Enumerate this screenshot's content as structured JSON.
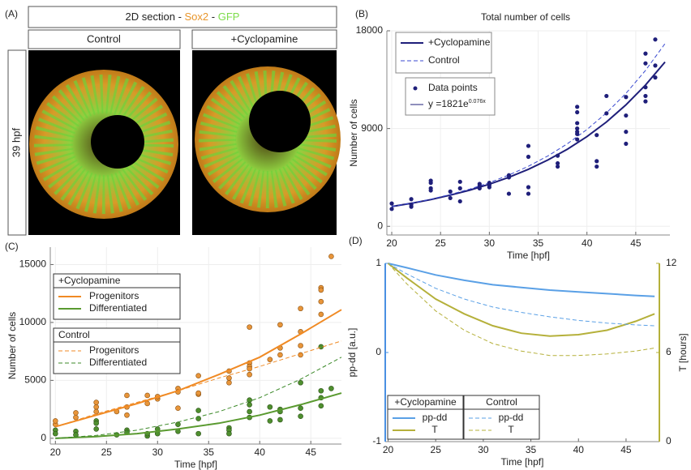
{
  "figure_a": {
    "panel_label": "(A)",
    "header_parts": [
      "2D section - ",
      "Sox2",
      " - ",
      "GFP"
    ],
    "header_colors": [
      "#222222",
      "#e8952a",
      "#222222",
      "#7ddc4a"
    ],
    "columns": [
      "Control",
      "+Cyclopamine"
    ],
    "row_label": "39 hpf"
  },
  "chart_data": [
    {
      "type": "line",
      "panel_label": "(B)",
      "title": "Total number of cells",
      "x_label": "Time [hpf]",
      "y_label": "Number of cells",
      "xlim": [
        19.5,
        48.5
      ],
      "xticks": [
        20,
        25,
        30,
        35,
        40,
        45
      ],
      "ylim": [
        -800,
        18000
      ],
      "yticks": [
        0,
        9000,
        18000
      ],
      "grid": true,
      "fit_label": "y =1821e",
      "fit_exponent": "0.076x",
      "series": [
        {
          "name": "+Cyclopamine",
          "color": "#1f1f7a",
          "style": "solid",
          "x": [
            20,
            22,
            24,
            26,
            28,
            30,
            32,
            34,
            36,
            38,
            40,
            42,
            44,
            46,
            48
          ],
          "values": [
            1820,
            2120,
            2460,
            2870,
            3330,
            3880,
            4510,
            5250,
            6110,
            7100,
            8260,
            9610,
            11180,
            13010,
            15130
          ]
        },
        {
          "name": "Control",
          "color": "#3a4ad0",
          "style": "dashed",
          "x": [
            20,
            22,
            24,
            26,
            28,
            30,
            32,
            34,
            36,
            38,
            40,
            42,
            44,
            46,
            48
          ],
          "values": [
            1820,
            2130,
            2500,
            2930,
            3430,
            4020,
            4720,
            5530,
            6480,
            7600,
            8910,
            10440,
            12240,
            14350,
            16820
          ]
        },
        {
          "name": "Data points",
          "color": "#1f1f7a",
          "style": "points",
          "x": [
            20,
            20,
            22,
            22,
            22,
            24,
            24,
            24,
            24,
            26,
            26,
            27,
            27,
            27,
            29,
            29,
            29,
            30,
            30,
            30,
            32,
            32,
            32,
            34,
            34,
            34,
            34,
            37,
            37,
            37,
            39,
            39,
            39,
            39,
            39,
            39,
            39,
            41,
            41,
            41,
            42,
            42,
            44,
            44,
            44,
            44,
            46,
            46,
            46,
            46,
            46,
            47,
            47,
            47
          ],
          "values": [
            2100,
            1600,
            2500,
            1800,
            2000,
            4200,
            4000,
            3500,
            3300,
            2600,
            3200,
            4100,
            3500,
            2300,
            3700,
            3900,
            3500,
            3800,
            3600,
            4000,
            3000,
            4700,
            4500,
            7400,
            6400,
            3000,
            3600,
            6500,
            5500,
            5800,
            11000,
            10500,
            9500,
            9000,
            8500,
            8000,
            8700,
            8400,
            6000,
            5500,
            12000,
            10400,
            11900,
            10200,
            8700,
            7600,
            15900,
            15000,
            12800,
            12000,
            11500,
            17200,
            14800,
            13700
          ]
        }
      ]
    },
    {
      "type": "line",
      "panel_label": "(C)",
      "x_label": "Time [hpf]",
      "y_label": "Number of cells",
      "xlim": [
        19.5,
        48
      ],
      "xticks": [
        20,
        25,
        30,
        35,
        40,
        45
      ],
      "ylim": [
        -500,
        16500
      ],
      "yticks": [
        0,
        5000,
        10000,
        15000
      ],
      "grid": true,
      "points": [
        {
          "color": "#e8953a",
          "edge": "#8a5010",
          "x": [
            20,
            20,
            22,
            22,
            24,
            24,
            24,
            26,
            27,
            27,
            27,
            29,
            29,
            30,
            30,
            32,
            32,
            32,
            34,
            34,
            34,
            37,
            37,
            37,
            39,
            39,
            39,
            39,
            39,
            41,
            42,
            42,
            42,
            44,
            44,
            44,
            44,
            46,
            46,
            46,
            46,
            47
          ],
          "values": [
            1200,
            1500,
            2200,
            1800,
            2700,
            2300,
            3100,
            2300,
            3700,
            2700,
            2000,
            3700,
            3000,
            3400,
            3600,
            4300,
            4000,
            2600,
            5400,
            3800,
            3900,
            5800,
            4800,
            5200,
            9600,
            6500,
            6200,
            6000,
            5500,
            6800,
            9800,
            7800,
            7200,
            11200,
            9200,
            8000,
            7200,
            13000,
            12800,
            11800,
            10700,
            15700
          ]
        },
        {
          "color": "#4f8f2f",
          "edge": "#2a5015",
          "x": [
            20,
            20,
            22,
            22,
            24,
            24,
            24,
            26,
            27,
            27,
            29,
            29,
            30,
            30,
            32,
            32,
            34,
            34,
            34,
            37,
            37,
            37,
            39,
            39,
            39,
            39,
            41,
            41,
            42,
            42,
            42,
            44,
            44,
            44,
            46,
            46,
            46,
            46,
            47
          ],
          "values": [
            700,
            400,
            600,
            300,
            1500,
            1300,
            800,
            300,
            700,
            500,
            200,
            400,
            800,
            400,
            600,
            1200,
            2400,
            1700,
            400,
            900,
            700,
            400,
            3300,
            2900,
            2300,
            1800,
            2700,
            1500,
            2500,
            2300,
            1600,
            4800,
            2600,
            1900,
            7900,
            4100,
            3500,
            2800,
            4300
          ]
        }
      ],
      "groups": [
        {
          "title": "+Cyclopamine",
          "series": [
            {
              "name": "Progenitors",
              "color": "#f08a24",
              "style": "solid",
              "x": [
                20,
                24,
                28,
                32,
                36,
                40,
                44,
                48
              ],
              "values": [
                1000,
                2000,
                3000,
                4100,
                5500,
                7000,
                9000,
                11100
              ]
            },
            {
              "name": "Differentiated",
              "color": "#5a9a30",
              "style": "solid",
              "x": [
                20,
                24,
                28,
                32,
                36,
                40,
                44,
                48
              ],
              "values": [
                0,
                150,
                400,
                800,
                1300,
                2000,
                2900,
                3900
              ]
            }
          ]
        },
        {
          "title": "Control",
          "series": [
            {
              "name": "Progenitors",
              "color": "#f08a24",
              "style": "dashed",
              "x": [
                20,
                24,
                28,
                32,
                36,
                40,
                44,
                48
              ],
              "values": [
                1000,
                2100,
                3100,
                4100,
                5200,
                6200,
                7300,
                8400
              ]
            },
            {
              "name": "Differentiated",
              "color": "#3d8a2a",
              "style": "dashed",
              "x": [
                20,
                24,
                28,
                32,
                36,
                40,
                44,
                48
              ],
              "values": [
                0,
                250,
                700,
                1400,
                2300,
                3500,
                5100,
                7000
              ]
            }
          ]
        }
      ]
    },
    {
      "type": "line",
      "panel_label": "(D)",
      "x_label": "Time [hpf]",
      "y_label": "pp-dd [a.u.]",
      "y2_label": "T [hours]",
      "xlim": [
        19.7,
        48.5
      ],
      "xticks": [
        20,
        25,
        30,
        35,
        40,
        45
      ],
      "ylim": [
        -1,
        1
      ],
      "yticks": [
        -1,
        0,
        1
      ],
      "y2lim": [
        0,
        12
      ],
      "y2ticks": [
        0,
        6,
        12
      ],
      "grid": false,
      "y_color": "#4a90e2",
      "y2_color": "#b5b03a",
      "groups": [
        {
          "title": "+Cyclopamine",
          "series": [
            {
              "name": "pp-dd",
              "color": "#5aa0e6",
              "style": "solid",
              "x": [
                20,
                22,
                25,
                28,
                31,
                34,
                37,
                40,
                43,
                46,
                48
              ],
              "values": [
                1,
                0.95,
                0.87,
                0.81,
                0.76,
                0.73,
                0.7,
                0.68,
                0.66,
                0.64,
                0.63
              ]
            },
            {
              "name": "T",
              "color": "#b5b03a",
              "style": "solid",
              "axis": "y2",
              "x": [
                20,
                22,
                25,
                28,
                31,
                34,
                37,
                40,
                43,
                46,
                48
              ],
              "values": [
                12,
                11,
                9.6,
                8.6,
                7.8,
                7.3,
                7.1,
                7.2,
                7.5,
                8.1,
                8.6
              ]
            }
          ]
        },
        {
          "title": "Control",
          "series": [
            {
              "name": "pp-dd",
              "color": "#5aa0e6",
              "style": "dashed",
              "x": [
                20,
                22,
                25,
                28,
                31,
                34,
                37,
                40,
                43,
                46,
                48
              ],
              "values": [
                1,
                0.88,
                0.72,
                0.6,
                0.51,
                0.45,
                0.4,
                0.36,
                0.33,
                0.31,
                0.3
              ]
            },
            {
              "name": "T",
              "color": "#b5b03a",
              "style": "dashed",
              "axis": "y2",
              "x": [
                20,
                22,
                25,
                28,
                31,
                34,
                37,
                40,
                43,
                46,
                48
              ],
              "values": [
                12,
                10.6,
                8.8,
                7.5,
                6.6,
                6.1,
                5.8,
                5.8,
                5.9,
                6.1,
                6.3
              ]
            }
          ]
        }
      ]
    }
  ]
}
